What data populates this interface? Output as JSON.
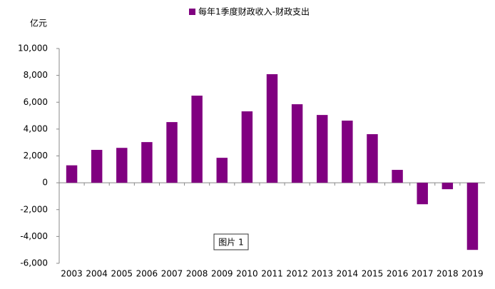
{
  "chart_data": {
    "type": "bar",
    "legend_name": "每年1季度财政收入-财政支出",
    "y_label": "亿元",
    "annotation": "图片 1",
    "categories": [
      "2003",
      "2004",
      "2005",
      "2006",
      "2007",
      "2008",
      "2009",
      "2010",
      "2011",
      "2012",
      "2013",
      "2014",
      "2015",
      "2016",
      "2017",
      "2018",
      "2019"
    ],
    "values": [
      1300,
      2450,
      2600,
      3030,
      4520,
      6490,
      1860,
      5320,
      8090,
      5850,
      5050,
      4630,
      3620,
      960,
      -1600,
      -480,
      -5000
    ],
    "color": "#800080",
    "ylim": [
      -6000,
      10000
    ],
    "yticks": [
      {
        "value": -6000,
        "label": "-6,000"
      },
      {
        "value": -4000,
        "label": "-4,000"
      },
      {
        "value": -2000,
        "label": "-2,000"
      },
      0,
      {
        "value": 2000,
        "label": "2,000"
      },
      {
        "value": 4000,
        "label": "4,000"
      },
      {
        "value": 6000,
        "label": "6,000"
      },
      {
        "value": 8000,
        "label": "8,000"
      },
      {
        "value": 10000,
        "label": "10,000"
      }
    ],
    "grid": false
  }
}
